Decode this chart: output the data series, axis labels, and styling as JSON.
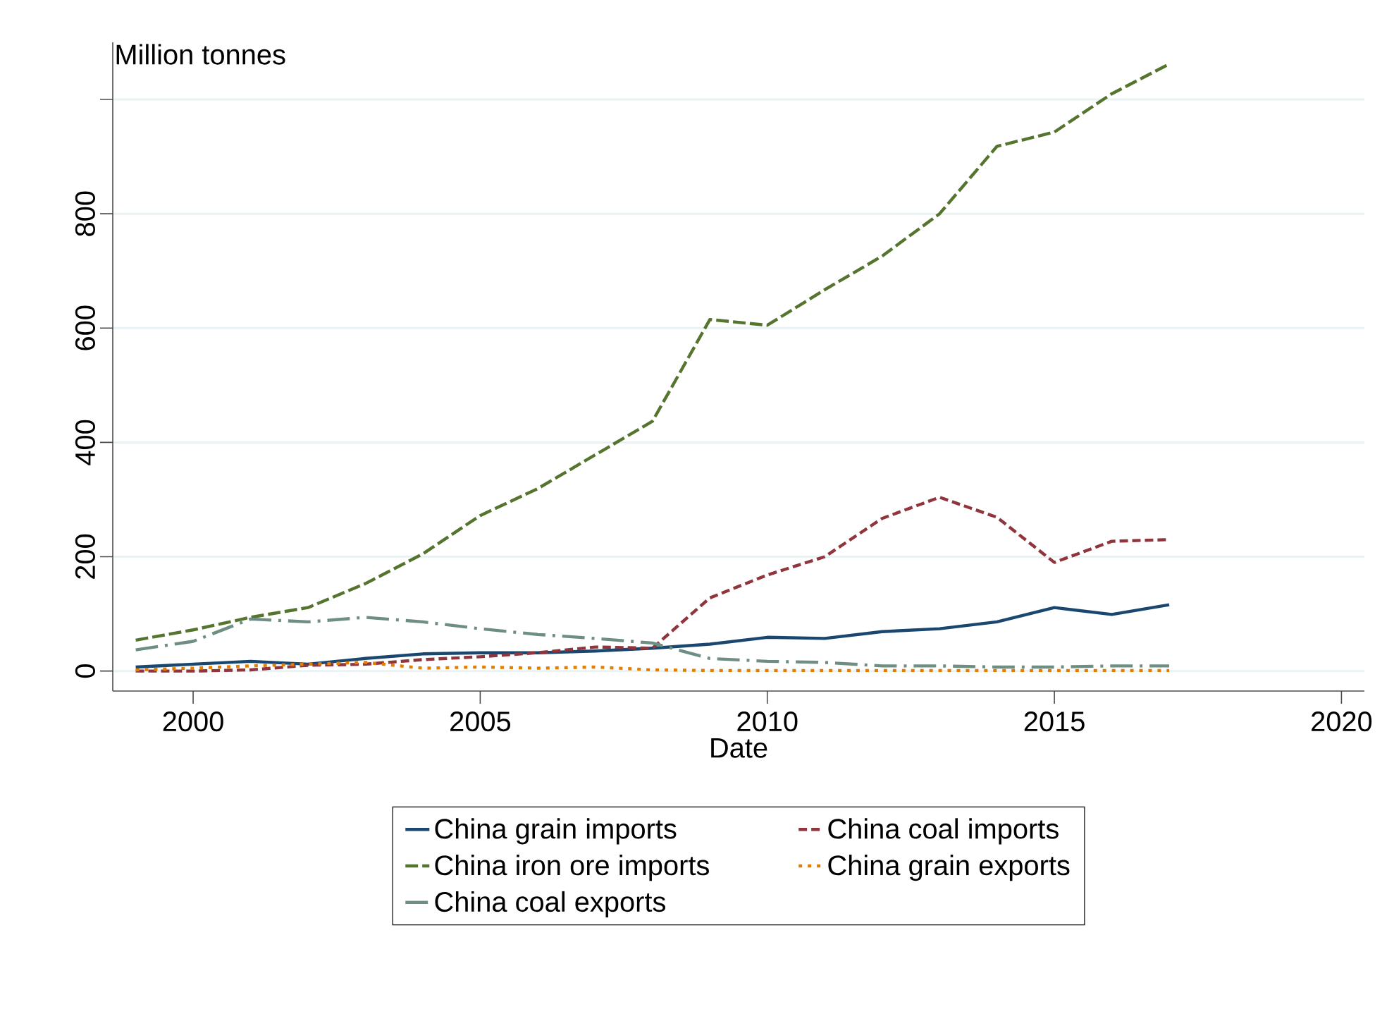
{
  "chart_data": {
    "type": "line",
    "ylabel": "Million tonnes",
    "xlabel": "Date",
    "x": [
      1999,
      2000,
      2001,
      2002,
      2003,
      2004,
      2005,
      2006,
      2007,
      2008,
      2009,
      2010,
      2011,
      2012,
      2013,
      2014,
      2015,
      2016,
      2017
    ],
    "series": [
      {
        "name": "China grain imports",
        "color": "#1a476f",
        "line_style": "solid",
        "values": [
          7,
          12,
          17,
          12,
          22,
          30,
          32,
          32,
          35,
          40,
          47,
          59,
          57,
          69,
          74,
          86,
          111,
          99,
          116
        ]
      },
      {
        "name": "China coal imports",
        "color": "#90353b",
        "line_style": "dashed",
        "values": [
          0,
          0,
          2,
          10,
          12,
          20,
          25,
          32,
          42,
          40,
          128,
          168,
          200,
          267,
          304,
          269,
          190,
          227,
          230
        ]
      },
      {
        "name": "China iron ore imports",
        "color": "#55752f",
        "line_style": "longdashed",
        "values": [
          54,
          72,
          94,
          111,
          153,
          205,
          272,
          319,
          378,
          437,
          615,
          605,
          667,
          726,
          800,
          918,
          943,
          1010,
          1062
        ]
      },
      {
        "name": "China grain exports",
        "color": "#e37e00",
        "line_style": "dotted",
        "values": [
          2,
          5,
          9,
          12,
          15,
          5,
          7,
          5,
          7,
          2,
          1,
          1,
          1,
          1,
          1,
          1,
          1,
          1,
          1
        ]
      },
      {
        "name": "China coal exports",
        "color": "#6e8e84",
        "line_style": "dashdot",
        "values": [
          37,
          52,
          91,
          86,
          94,
          86,
          74,
          64,
          57,
          49,
          22,
          17,
          15,
          9,
          9,
          7,
          7,
          9,
          9
        ]
      }
    ],
    "xlim": [
      1998.6,
      2020.4
    ],
    "ylim": [
      -35,
      1100
    ],
    "xticks": [
      2000,
      2005,
      2010,
      2015,
      2020
    ],
    "yticks": [
      0,
      200,
      400,
      600,
      800,
      {
        "value": 1000,
        "label": null
      }
    ],
    "grid": "y",
    "legend": "bottom"
  }
}
